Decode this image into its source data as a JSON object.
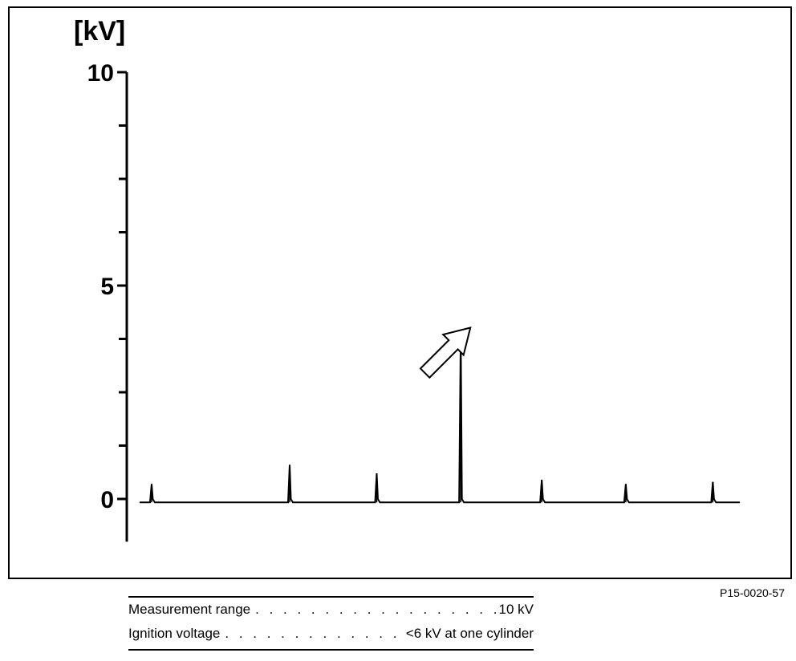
{
  "chart_data": {
    "type": "line",
    "ylabel": "[kV]",
    "yticks_labeled": [
      0,
      5,
      10
    ],
    "yticks_minor": [
      -1.25,
      1.25,
      2.5,
      3.75,
      6.25,
      7.5,
      8.75
    ],
    "ylim": [
      -1,
      10
    ],
    "xlabel": "",
    "grid": false,
    "baseline": -0.08,
    "spikes": [
      {
        "x": 0.02,
        "value": 0.35
      },
      {
        "x": 0.25,
        "value": 0.8
      },
      {
        "x": 0.395,
        "value": 0.6
      },
      {
        "x": 0.535,
        "value": 3.9,
        "highlighted": true
      },
      {
        "x": 0.67,
        "value": 0.45
      },
      {
        "x": 0.81,
        "value": 0.35
      },
      {
        "x": 0.955,
        "value": 0.4
      }
    ],
    "annotation": {
      "type": "arrow",
      "points_to": "highlighted spike"
    }
  },
  "figure_code": "P15-0020-57",
  "specs": [
    {
      "label": "Measurement range",
      "value": "10 kV"
    },
    {
      "label": "Ignition voltage",
      "value": "<6 kV at one cylinder"
    }
  ]
}
